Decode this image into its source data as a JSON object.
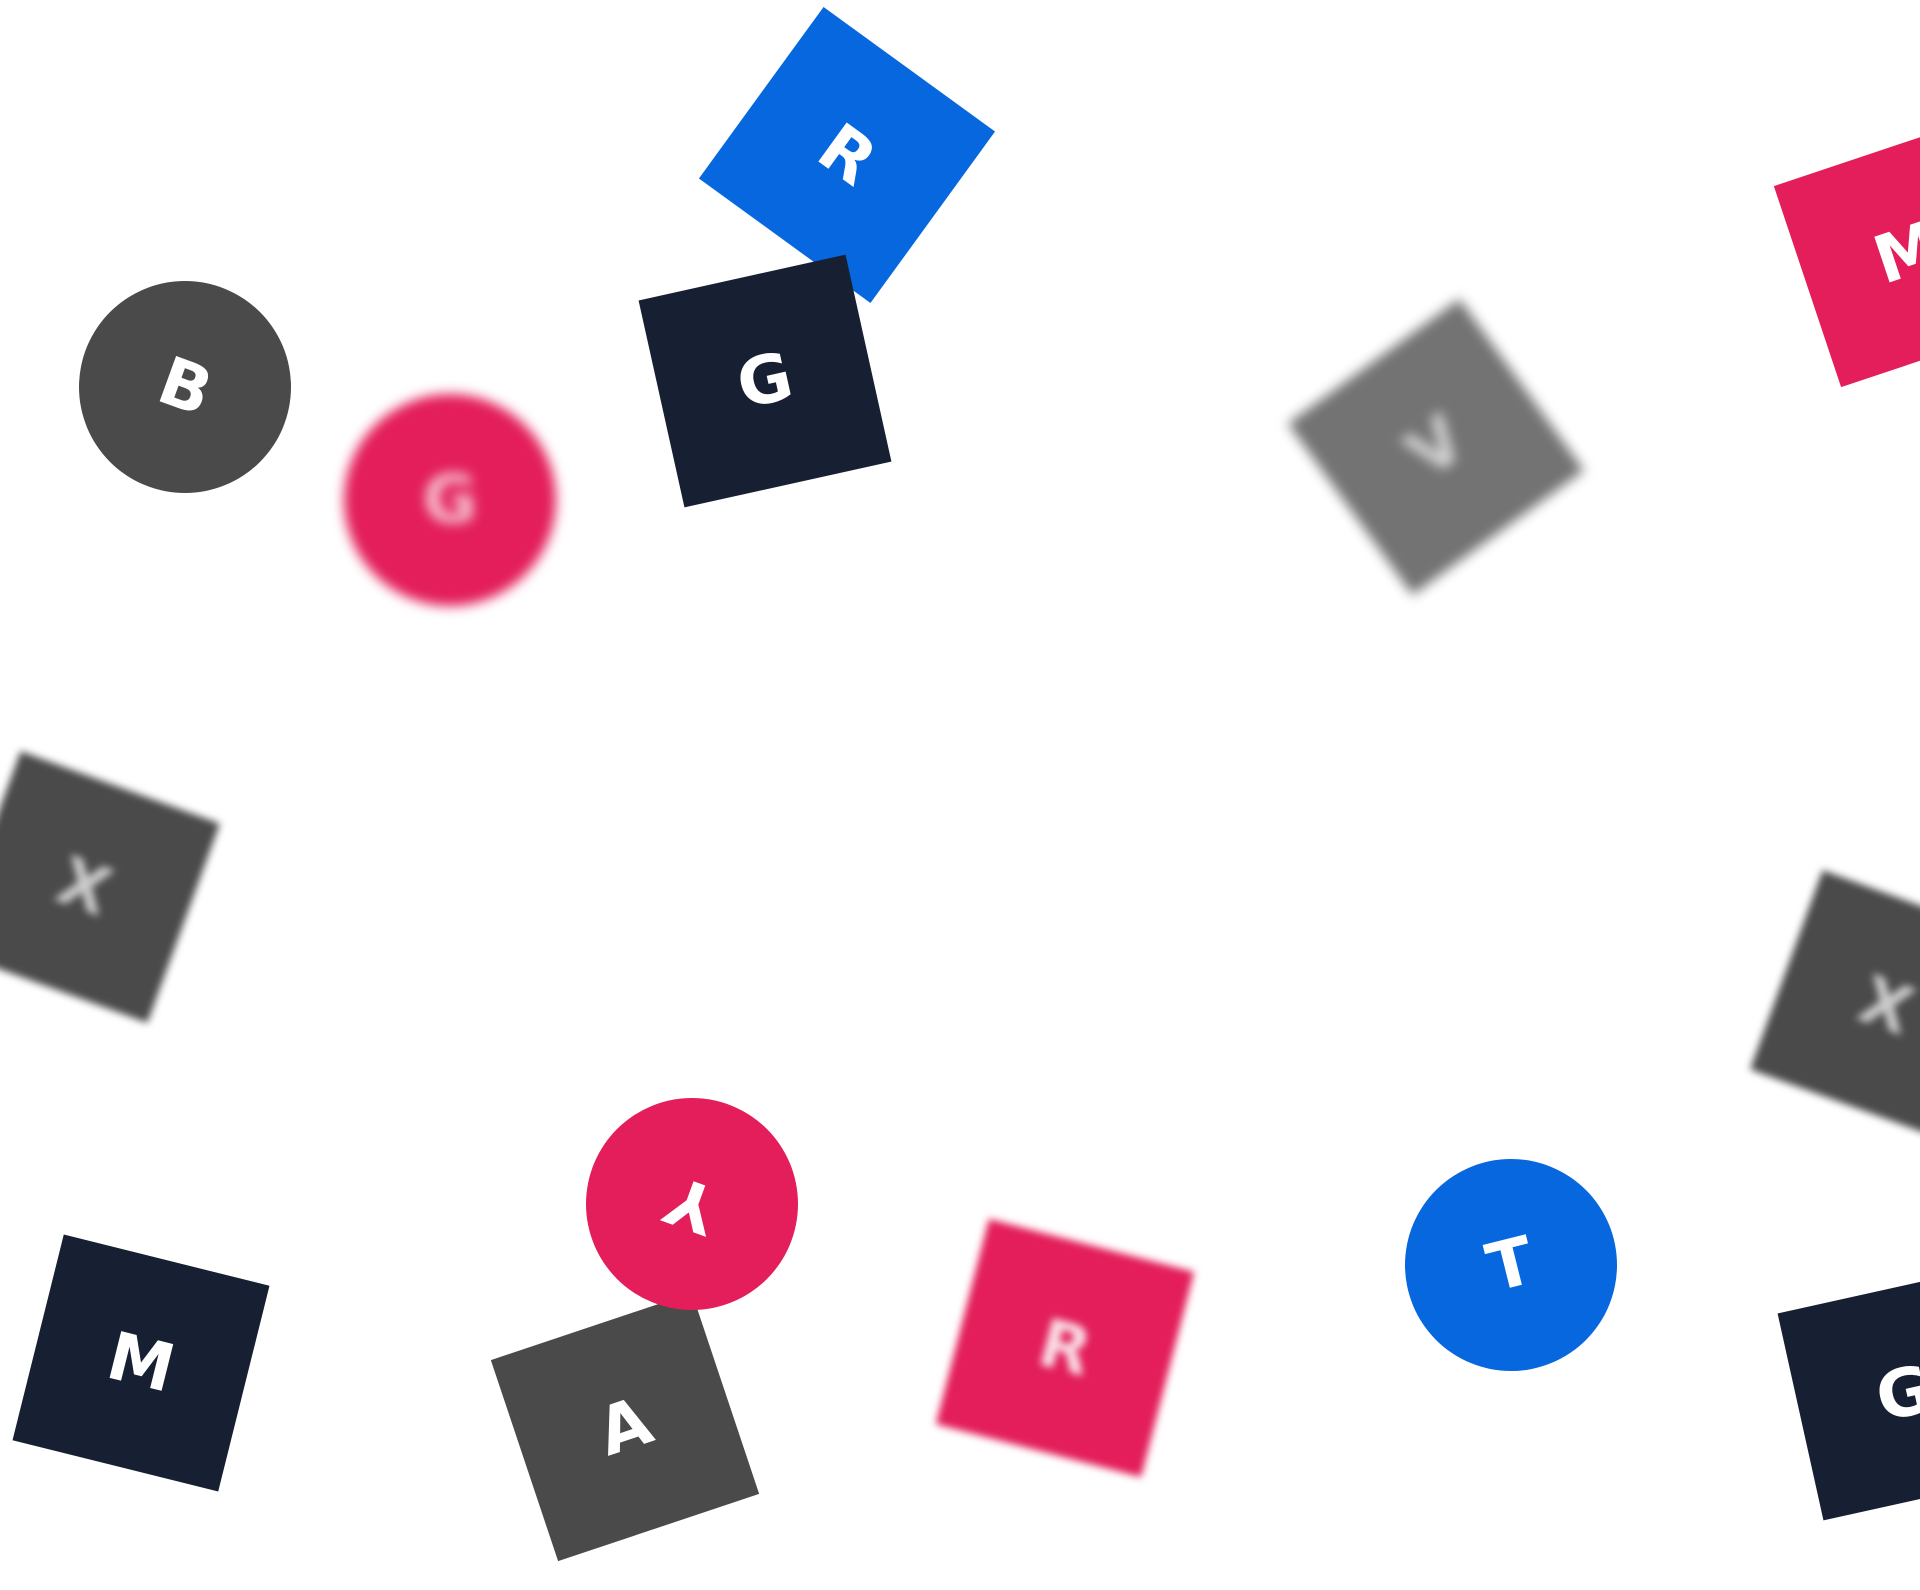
{
  "palette": {
    "blue": "#0767DF",
    "navy": "#172033",
    "crimson": "#E31E5A",
    "charcoal": "#4A4A4A",
    "gray": "#737373",
    "letter": "#FFFFFF",
    "background": "#FFFFFF"
  },
  "tiles": [
    {
      "letter": "R",
      "shape": "square",
      "color": "#0767DF",
      "blur": false
    },
    {
      "letter": "G",
      "shape": "square",
      "color": "#172033",
      "blur": false
    },
    {
      "letter": "B",
      "shape": "circle",
      "color": "#4A4A4A",
      "blur": false
    },
    {
      "letter": "G",
      "shape": "circle",
      "color": "#E31E5A",
      "blur": true
    },
    {
      "letter": "V",
      "shape": "square",
      "color": "#737373",
      "blur": true
    },
    {
      "letter": "M",
      "shape": "square",
      "color": "#E31E5A",
      "blur": false
    },
    {
      "letter": "X",
      "shape": "square",
      "color": "#4A4A4A",
      "blur": true
    },
    {
      "letter": "X",
      "shape": "square",
      "color": "#4A4A4A",
      "blur": true
    },
    {
      "letter": "Y",
      "shape": "circle",
      "color": "#E31E5A",
      "blur": false
    },
    {
      "letter": "A",
      "shape": "square",
      "color": "#4A4A4A",
      "blur": false
    },
    {
      "letter": "M",
      "shape": "square",
      "color": "#172033",
      "blur": false
    },
    {
      "letter": "R",
      "shape": "square",
      "color": "#E31E5A",
      "blur": true
    },
    {
      "letter": "T",
      "shape": "circle",
      "color": "#0767DF",
      "blur": false
    },
    {
      "letter": "G",
      "shape": "square",
      "color": "#172033",
      "blur": false
    }
  ]
}
